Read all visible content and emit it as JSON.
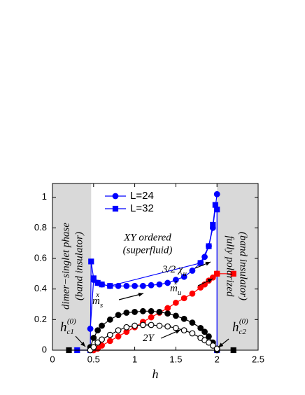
{
  "chart_data": {
    "type": "line",
    "xlabel": "h",
    "xlim": [
      0,
      2.5
    ],
    "ylim": [
      0,
      1.09
    ],
    "xticks": [
      0,
      0.5,
      1,
      1.5,
      2,
      2.5
    ],
    "yticks": [
      0,
      0.2,
      0.4,
      0.6,
      0.8,
      1
    ],
    "shaded": [
      [
        0,
        0.47
      ],
      [
        2.0,
        2.5
      ]
    ],
    "shade_color": "#d9d9d9",
    "legend": [
      {
        "name": "L=24",
        "marker": "circle",
        "color": "#0000ff"
      },
      {
        "name": "L=32",
        "marker": "square",
        "color": "#0000ff"
      }
    ],
    "series": [
      {
        "color": "#0000ff",
        "marker": "circle",
        "filled": true,
        "x": [
          0.46,
          0.5,
          0.55,
          0.6,
          0.7,
          0.8,
          0.9,
          1.0,
          1.1,
          1.2,
          1.3,
          1.4,
          1.5,
          1.6,
          1.7,
          1.8,
          1.85,
          1.9,
          1.95,
          2.0
        ],
        "values": [
          0.14,
          0.46,
          0.44,
          0.43,
          0.42,
          0.42,
          0.42,
          0.42,
          0.42,
          0.425,
          0.43,
          0.44,
          0.46,
          0.48,
          0.52,
          0.57,
          0.61,
          0.68,
          0.8,
          1.02
        ]
      },
      {
        "color": "#0000ff",
        "marker": "square",
        "filled": true,
        "x": [
          0.3,
          0.46,
          0.47,
          0.5,
          0.55,
          0.6,
          0.7,
          1.8,
          1.9,
          1.95,
          1.98,
          2.0,
          2.0
        ],
        "values": [
          0,
          0,
          0.58,
          0.47,
          0.44,
          0.43,
          0.42,
          0.57,
          0.68,
          0.82,
          0.95,
          0.92,
          0
        ]
      },
      {
        "color": "#ff0000",
        "marker": "circle",
        "filled": true,
        "x": [
          0.5,
          0.55,
          0.6,
          0.7,
          0.8,
          0.9,
          1.0,
          1.1,
          1.2,
          1.3,
          1.4,
          1.5,
          1.6,
          1.7,
          1.8,
          1.85,
          1.9,
          1.95,
          2.0
        ],
        "values": [
          0,
          0.01,
          0.03,
          0.06,
          0.09,
          0.12,
          0.15,
          0.185,
          0.215,
          0.245,
          0.275,
          0.31,
          0.34,
          0.37,
          0.41,
          0.43,
          0.455,
          0.475,
          0.5
        ]
      },
      {
        "color": "#ff0000",
        "marker": "square",
        "filled": true,
        "x": [
          2.0,
          2.2
        ],
        "values": [
          0.5,
          0.5
        ]
      },
      {
        "color": "#000000",
        "marker": "circle",
        "filled": true,
        "x": [
          0.46,
          0.5,
          0.55,
          0.6,
          0.7,
          0.8,
          0.9,
          1.0,
          1.1,
          1.2,
          1.3,
          1.4,
          1.5,
          1.6,
          1.7,
          1.8,
          1.85,
          1.9,
          1.95,
          2.0
        ],
        "values": [
          0.02,
          0.08,
          0.13,
          0.16,
          0.2,
          0.23,
          0.245,
          0.25,
          0.255,
          0.255,
          0.25,
          0.24,
          0.225,
          0.205,
          0.18,
          0.145,
          0.12,
          0.09,
          0.05,
          0
        ]
      },
      {
        "color": "#000000",
        "marker": "square",
        "filled": true,
        "x": [
          0.2,
          2.2
        ],
        "values": [
          0,
          0
        ]
      },
      {
        "color": "#000000",
        "marker": "circle",
        "filled": false,
        "x": [
          0.46,
          0.5,
          0.55,
          0.6,
          0.7,
          0.8,
          0.9,
          1.0,
          1.1,
          1.2,
          1.3,
          1.4,
          1.5,
          1.6,
          1.7,
          1.8,
          1.85,
          1.9,
          1.95,
          2.0
        ],
        "values": [
          0,
          0.02,
          0.05,
          0.07,
          0.1,
          0.13,
          0.15,
          0.16,
          0.165,
          0.165,
          0.16,
          0.155,
          0.145,
          0.13,
          0.11,
          0.08,
          0.065,
          0.05,
          0.03,
          0.01
        ]
      }
    ],
    "region_labels": [
      "dimer−singlet phase",
      "(band insulator)",
      "XY ordered",
      "(superfluid)",
      "fully  polarized",
      "(band insulator)"
    ],
    "curve_labels": [
      {
        "text": "3/2 χ",
        "sub": "u"
      },
      {
        "text": "m",
        "sub": "u",
        "sup": "z"
      },
      {
        "text": "m",
        "sub": "s",
        "sup": "x"
      },
      {
        "text": "2Υ"
      },
      {
        "text": "h",
        "sub": "c1",
        "sup": "(0)"
      },
      {
        "text": "h",
        "sub": "c2",
        "sup": "(0)"
      }
    ]
  }
}
